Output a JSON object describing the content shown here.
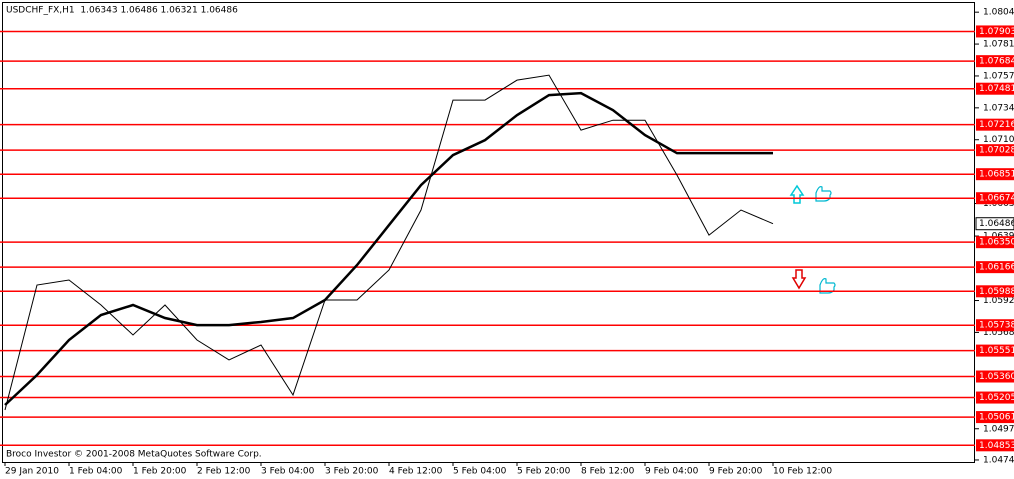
{
  "chart_data": {
    "type": "line",
    "title": "USDCHF_FX,H1  1.06343 1.06486 1.06321 1.06486",
    "footer": "Broco Investor © 2001-2008 MetaQuotes Software Corp.",
    "x": [
      0,
      8,
      16,
      24,
      32,
      40,
      48,
      56,
      64,
      72,
      80,
      88,
      96,
      104,
      112,
      120,
      128,
      136,
      144,
      152,
      160,
      168,
      176,
      184,
      192
    ],
    "xlim": [
      -1.25,
      242.5
    ],
    "xticks": [
      {
        "value": 0,
        "label": "29 Jan 2010"
      },
      {
        "value": 16,
        "label": "1 Feb 04:00"
      },
      {
        "value": 32,
        "label": "1 Feb 20:00"
      },
      {
        "value": 48,
        "label": "2 Feb 12:00"
      },
      {
        "value": 64,
        "label": "3 Feb 04:00"
      },
      {
        "value": 80,
        "label": "3 Feb 20:00"
      },
      {
        "value": 96,
        "label": "4 Feb 12:00"
      },
      {
        "value": 112,
        "label": "5 Feb 04:00"
      },
      {
        "value": 128,
        "label": "5 Feb 20:00"
      },
      {
        "value": 144,
        "label": "8 Feb 12:00"
      },
      {
        "value": 160,
        "label": "9 Feb 04:00"
      },
      {
        "value": 176,
        "label": "9 Feb 20:00"
      },
      {
        "value": 192,
        "label": "10 Feb 12:00"
      }
    ],
    "ylim": [
      1.0473,
      1.0812
    ],
    "yticks": [
      {
        "value": 1.08045,
        "label": "1.08045"
      },
      {
        "value": 1.0781,
        "label": "1.07810"
      },
      {
        "value": 1.07575,
        "label": "1.07575"
      },
      {
        "value": 1.0734,
        "label": "1.07340"
      },
      {
        "value": 1.07105,
        "label": "1.07105"
      },
      {
        "value": 1.06635,
        "label": "1.06635"
      },
      {
        "value": 1.06395,
        "label": "1.06395"
      },
      {
        "value": 1.0592,
        "label": "1.05920"
      },
      {
        "value": 1.05685,
        "label": "1.05685"
      },
      {
        "value": 1.04975,
        "label": "1.04975"
      },
      {
        "value": 1.04745,
        "label": "1.04745"
      }
    ],
    "series": [
      {
        "color": "#000000",
        "width": 1,
        "values": [
          1.05113,
          1.06034,
          1.06071,
          1.05887,
          1.05666,
          1.05887,
          1.05629,
          1.05482,
          1.05592,
          1.05224,
          1.05924,
          1.05924,
          1.06145,
          1.06587,
          1.07397,
          1.07397,
          1.07544,
          1.07581,
          1.07176,
          1.07249,
          1.07249,
          1.06844,
          1.06402,
          1.06587,
          1.06486
        ]
      },
      {
        "color": "#000000",
        "width": 2.5,
        "values": [
          1.0515,
          1.05371,
          1.05629,
          1.05813,
          1.05887,
          1.05791,
          1.05739,
          1.05739,
          1.05762,
          1.05791,
          1.05924,
          1.06181,
          1.06476,
          1.06771,
          1.06992,
          1.07102,
          1.07286,
          1.07434,
          1.07448,
          1.07323,
          1.07139,
          1.07006,
          1.07006,
          1.07006,
          1.07006
        ]
      }
    ],
    "levels": {
      "color": "#ff0000",
      "values": [
        {
          "value": 1.07903,
          "label": "1.07903"
        },
        {
          "value": 1.07684,
          "label": "1.07684"
        },
        {
          "value": 1.07481,
          "label": "1.07481"
        },
        {
          "value": 1.07216,
          "label": "1.07216"
        },
        {
          "value": 1.07028,
          "label": "1.07028"
        },
        {
          "value": 1.06851,
          "label": "1.06851"
        },
        {
          "value": 1.06674,
          "label": "1.06674"
        },
        {
          "value": 1.0635,
          "label": "1.06350"
        },
        {
          "value": 1.06166,
          "label": "1.06166"
        },
        {
          "value": 1.05988,
          "label": "1.05988"
        },
        {
          "value": 1.05738,
          "label": "1.05738"
        },
        {
          "value": 1.05551,
          "label": "1.05551"
        },
        {
          "value": 1.0536,
          "label": "1.05360"
        },
        {
          "value": 1.05205,
          "label": "1.05205"
        },
        {
          "value": 1.05061,
          "label": "1.05061"
        },
        {
          "value": 1.04853,
          "label": "1.04853"
        }
      ]
    },
    "last_price": {
      "value": 1.06486,
      "label": "1.06486"
    }
  }
}
